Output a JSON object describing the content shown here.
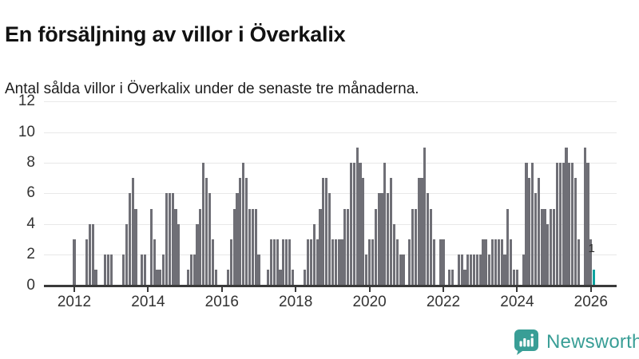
{
  "header": {
    "title": "En försäljning av villor i Överkalix",
    "subtitle": "Antal sålda villor i Överkalix under de senaste tre månaderna."
  },
  "chart_data": {
    "type": "bar",
    "title": "En försäljning av villor i Överkalix",
    "subtitle": "Antal sålda villor i Överkalix under de senaste tre månaderna.",
    "x_start_month": "2011-07",
    "x_unit": "month",
    "values": [
      0,
      0,
      0,
      0,
      0,
      0,
      3,
      0,
      0,
      0,
      3,
      4,
      4,
      1,
      0,
      0,
      2,
      2,
      2,
      0,
      0,
      0,
      2,
      4,
      6,
      7,
      5,
      0,
      2,
      2,
      0,
      5,
      3,
      1,
      1,
      2,
      6,
      6,
      6,
      5,
      4,
      0,
      0,
      1,
      2,
      2,
      4,
      5,
      8,
      7,
      6,
      3,
      1,
      0,
      0,
      0,
      1,
      3,
      5,
      6,
      7,
      8,
      7,
      5,
      5,
      5,
      2,
      0,
      0,
      1,
      3,
      3,
      3,
      1,
      3,
      3,
      3,
      1,
      0,
      0,
      0,
      1,
      3,
      3,
      4,
      3,
      5,
      7,
      7,
      6,
      3,
      3,
      3,
      3,
      5,
      5,
      8,
      8,
      9,
      8,
      7,
      2,
      3,
      3,
      5,
      6,
      6,
      8,
      6,
      7,
      4,
      3,
      2,
      2,
      0,
      3,
      5,
      5,
      7,
      7,
      9,
      6,
      5,
      3,
      0,
      3,
      3,
      0,
      1,
      1,
      0,
      2,
      2,
      1,
      2,
      2,
      2,
      2,
      2,
      3,
      3,
      2,
      3,
      3,
      3,
      3,
      2,
      5,
      3,
      1,
      1,
      0,
      2,
      8,
      7,
      8,
      6,
      7,
      5,
      5,
      4,
      5,
      5,
      8,
      8,
      8,
      9,
      8,
      8,
      7,
      3,
      0,
      9,
      8,
      3,
      1
    ],
    "highlight": {
      "month": "2026-02",
      "value": 1,
      "label": "1"
    },
    "y_ticks": [
      0,
      2,
      4,
      6,
      8,
      10,
      12
    ],
    "ylim": [
      0,
      12
    ],
    "x_tick_years": [
      2012,
      2014,
      2016,
      2018,
      2020,
      2022,
      2024,
      2026
    ],
    "grid": true,
    "legend": "none",
    "bar_color": "#6f6f76",
    "highlight_color": "#0ea39f",
    "grid_color": "#e8e8e8",
    "axis_color": "#3a3a3a",
    "tick_label_color": "#333333"
  },
  "footer": {
    "brand": "Newsworthy",
    "brand_color": "#399e96",
    "logo_icon": "bar-chart-speech-bubble-icon"
  }
}
